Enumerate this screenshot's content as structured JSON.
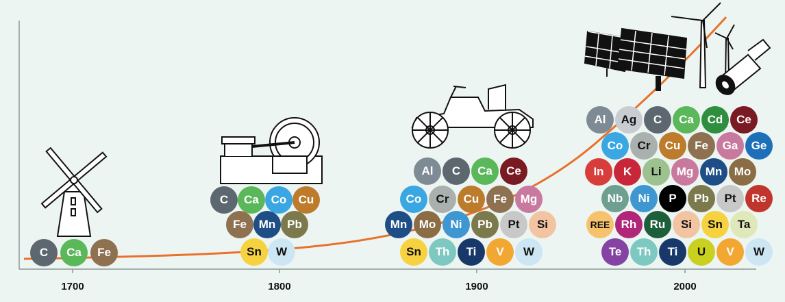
{
  "timeline": {
    "years": [
      "1700",
      "1800",
      "1900",
      "2000"
    ],
    "colors": {
      "curve": "#e8712b",
      "axis": "#8a9894",
      "background": "#edf5f2"
    }
  },
  "element_colors": {
    "C": "#5c6770",
    "Ca": "#5bb85a",
    "Fe": "#8e7150",
    "Co": "#3aa7e2",
    "Cu": "#bd7c2c",
    "Mn": "#1f4e86",
    "Pb": "#7c7a4c",
    "Sn": "#f6d240",
    "W": "#cde6f4",
    "Al": "#7f8b94",
    "Ce": "#7a1a22",
    "Cr": "#a9b0ad",
    "Mg": "#c9799e",
    "Mo": "#8a6d45",
    "Ni": "#3f97d2",
    "Pt": "#c8c8c8",
    "Si": "#f3c4a2",
    "Th": "#7dc8c0",
    "Ti": "#18386a",
    "V": "#f3a733",
    "Ag": "#c9ccd0",
    "Cd": "#2f8f3f",
    "Ga": "#c9799e",
    "Ge": "#1d6fb8",
    "In": "#d63d3b",
    "K": "#c8273a",
    "Li": "#9dc28f",
    "Nb": "#6f9f90",
    "P": "#000000",
    "Re": "#c0362c",
    "REE": "#f7c26d",
    "Rh": "#b0277a",
    "Ru": "#1d5e3b",
    "Ta": "#dfe8b8",
    "Te": "#8543a3",
    "U": "#c9d01f"
  },
  "groups": {
    "g1700": [
      "C",
      "Ca",
      "Fe"
    ],
    "g1800": [
      [
        "C",
        "Ca",
        "Co",
        "Cu"
      ],
      [
        "Fe",
        "Mn",
        "Pb"
      ],
      [
        "Sn",
        "W"
      ]
    ],
    "g1900": [
      [
        "Al",
        "C",
        "Ca",
        "Ce"
      ],
      [
        "Co",
        "Cr",
        "Cu",
        "Fe",
        "Mg"
      ],
      [
        "Mn",
        "Mo",
        "Ni",
        "Pb",
        "Pt",
        "Si"
      ],
      [
        "Sn",
        "Th",
        "Ti",
        "V",
        "W"
      ]
    ],
    "g2000": [
      [
        "Al",
        "Ag",
        "C",
        "Ca",
        "Cd",
        "Ce"
      ],
      [
        "Co",
        "Cr",
        "Cu",
        "Fe",
        "Ga",
        "Ge"
      ],
      [
        "In",
        "K",
        "Li",
        "Mg",
        "Mn",
        "Mo"
      ],
      [
        "Nb",
        "Ni",
        "P",
        "Pb",
        "Pt",
        "Re"
      ],
      [
        "REE",
        "Rh",
        "Ru",
        "Si",
        "Sn",
        "Ta"
      ],
      [
        "Te",
        "Th",
        "Ti",
        "U",
        "V",
        "W"
      ]
    ]
  },
  "illustrations": [
    "windmill-icon",
    "steam-engine-icon",
    "vintage-car-icon",
    "solar-panel-icon",
    "wind-turbine-icon",
    "battery-icon"
  ]
}
